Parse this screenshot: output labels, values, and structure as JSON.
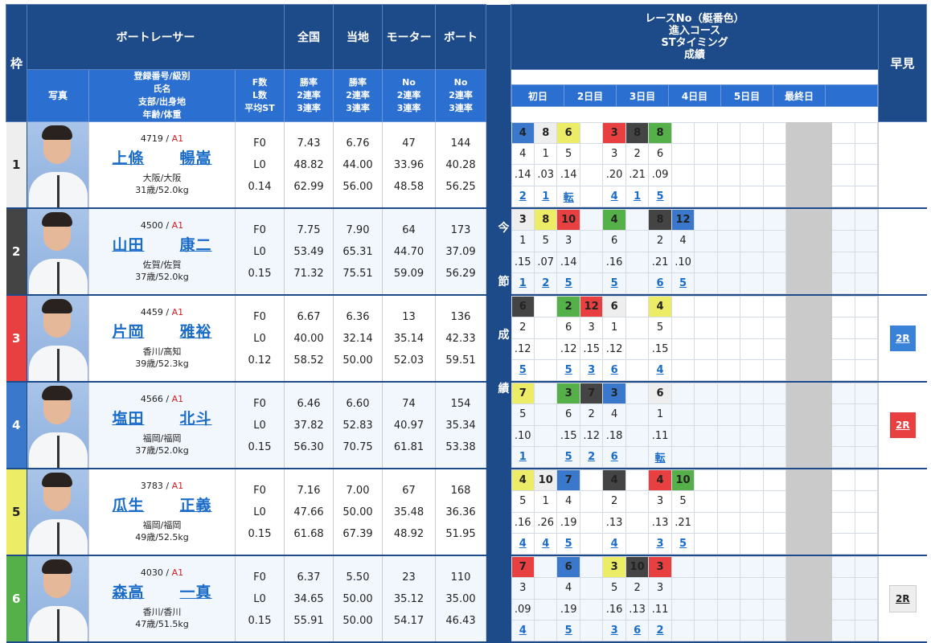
{
  "header": {
    "waku": "枠",
    "boatracer": "ボートレーサー",
    "zenkoku": "全国",
    "touchi": "当地",
    "motor": "モーター",
    "boat": "ボート",
    "photo": "写真",
    "info_lines": [
      "登録番号/級別",
      "氏名",
      "支部/出身地",
      "年齢/体重"
    ],
    "fl_lines": [
      "F数",
      "L数",
      "平均ST"
    ],
    "zenkoku_lines": [
      "勝率",
      "2連率",
      "3連率"
    ],
    "touchi_lines": [
      "勝率",
      "2連率",
      "3連率"
    ],
    "motor_lines": [
      "No",
      "2連率",
      "3連率"
    ],
    "boat_lines": [
      "No",
      "2連率",
      "3連率"
    ],
    "race_title_lines": [
      "レースNo（艇番色）",
      "進入コース",
      "STタイミング",
      "成績"
    ],
    "days": [
      "初日",
      "2日目",
      "3日目",
      "4日目",
      "5日目",
      "最終日",
      ""
    ],
    "hayami": "早見",
    "strip_chars": [
      "今",
      "節",
      "成",
      "績"
    ]
  },
  "racers": [
    {
      "waku": "1",
      "reg_no": "4719",
      "class": "A1",
      "name_last": "上條",
      "name_first": "暢嵩",
      "branch": "大阪/大阪",
      "age_weight": "31歳/52.0kg",
      "f": "F0",
      "l": "L0",
      "avg_st": "0.14",
      "zenkoku": [
        "7.43",
        "48.82",
        "62.99"
      ],
      "touchi": [
        "6.76",
        "44.00",
        "56.00"
      ],
      "motor": [
        "47",
        "33.96",
        "48.58"
      ],
      "boat": [
        "144",
        "40.28",
        "56.25"
      ],
      "races": [
        {
          "race": "4",
          "color": "4",
          "course": "4",
          "st": ".14",
          "result": "2"
        },
        {
          "race": "8",
          "color": "1",
          "course": "1",
          "st": ".03",
          "result": "1"
        },
        {
          "race": "6",
          "color": "5",
          "course": "5",
          "st": ".14",
          "result": "転"
        },
        null,
        {
          "race": "3",
          "color": "3",
          "course": "3",
          "st": ".20",
          "result": "4"
        },
        {
          "race": "8",
          "color": "2",
          "course": "2",
          "st": ".21",
          "result": "1"
        },
        {
          "race": "8",
          "color": "6",
          "course": "6",
          "st": ".09",
          "result": "5"
        },
        null,
        null,
        null,
        null,
        null,
        null,
        null,
        null,
        null
      ],
      "hayami": null
    },
    {
      "waku": "2",
      "reg_no": "4500",
      "class": "A1",
      "name_last": "山田",
      "name_first": "康二",
      "branch": "佐賀/佐賀",
      "age_weight": "37歳/52.0kg",
      "f": "F0",
      "l": "L0",
      "avg_st": "0.15",
      "zenkoku": [
        "7.75",
        "53.49",
        "71.32"
      ],
      "touchi": [
        "7.90",
        "65.31",
        "75.51"
      ],
      "motor": [
        "64",
        "44.70",
        "59.09"
      ],
      "boat": [
        "173",
        "37.09",
        "56.29"
      ],
      "races": [
        {
          "race": "3",
          "color": "1",
          "course": "1",
          "st": ".15",
          "result": "1"
        },
        {
          "race": "8",
          "color": "5",
          "course": "5",
          "st": ".07",
          "result": "2"
        },
        {
          "race": "10",
          "color": "3",
          "course": "3",
          "st": ".14",
          "result": "5"
        },
        null,
        {
          "race": "4",
          "color": "6",
          "course": "6",
          "st": ".16",
          "result": "5"
        },
        null,
        {
          "race": "8",
          "color": "2",
          "course": "2",
          "st": ".21",
          "result": "6"
        },
        {
          "race": "12",
          "color": "4",
          "course": "4",
          "st": ".10",
          "result": "5"
        },
        null,
        null,
        null,
        null,
        null,
        null,
        null,
        null
      ],
      "hayami": null
    },
    {
      "waku": "3",
      "reg_no": "4459",
      "class": "A1",
      "name_last": "片岡",
      "name_first": "雅裕",
      "branch": "香川/高知",
      "age_weight": "39歳/52.3kg",
      "f": "F0",
      "l": "L0",
      "avg_st": "0.12",
      "zenkoku": [
        "6.67",
        "40.00",
        "58.52"
      ],
      "touchi": [
        "6.36",
        "32.14",
        "50.00"
      ],
      "motor": [
        "13",
        "35.14",
        "52.03"
      ],
      "boat": [
        "136",
        "42.33",
        "59.51"
      ],
      "races": [
        {
          "race": "6",
          "color": "2",
          "course": "2",
          "st": ".12",
          "result": "5"
        },
        null,
        {
          "race": "2",
          "color": "6",
          "course": "6",
          "st": ".12",
          "result": "5"
        },
        {
          "race": "12",
          "color": "3",
          "course": "3",
          "st": ".15",
          "result": "3"
        },
        {
          "race": "6",
          "color": "1",
          "course": "1",
          "st": ".12",
          "result": "6"
        },
        null,
        {
          "race": "4",
          "color": "5",
          "course": "5",
          "st": ".15",
          "result": "4"
        },
        null,
        null,
        null,
        null,
        null,
        null,
        null,
        null,
        null
      ],
      "hayami": {
        "label": "2R",
        "style": "blue"
      }
    },
    {
      "waku": "4",
      "reg_no": "4566",
      "class": "A1",
      "name_last": "塩田",
      "name_first": "北斗",
      "branch": "福岡/福岡",
      "age_weight": "37歳/52.0kg",
      "f": "F0",
      "l": "L0",
      "avg_st": "0.15",
      "zenkoku": [
        "6.46",
        "37.82",
        "56.30"
      ],
      "touchi": [
        "6.60",
        "52.83",
        "70.75"
      ],
      "motor": [
        "74",
        "40.97",
        "61.81"
      ],
      "boat": [
        "154",
        "35.34",
        "53.38"
      ],
      "races": [
        {
          "race": "7",
          "color": "5",
          "course": "5",
          "st": ".10",
          "result": "1"
        },
        null,
        {
          "race": "3",
          "color": "6",
          "course": "6",
          "st": ".15",
          "result": "5"
        },
        {
          "race": "7",
          "color": "2",
          "course": "2",
          "st": ".12",
          "result": "2"
        },
        {
          "race": "3",
          "color": "4",
          "course": "4",
          "st": ".18",
          "result": "6"
        },
        null,
        {
          "race": "6",
          "color": "1",
          "course": "1",
          "st": ".11",
          "result": "転"
        },
        null,
        null,
        null,
        null,
        null,
        null,
        null,
        null,
        null
      ],
      "hayami": {
        "label": "2R",
        "style": "red"
      }
    },
    {
      "waku": "5",
      "reg_no": "3783",
      "class": "A1",
      "name_last": "瓜生",
      "name_first": "正義",
      "branch": "福岡/福岡",
      "age_weight": "49歳/52.5kg",
      "f": "F0",
      "l": "L0",
      "avg_st": "0.15",
      "zenkoku": [
        "7.16",
        "47.66",
        "61.68"
      ],
      "touchi": [
        "7.00",
        "50.00",
        "67.39"
      ],
      "motor": [
        "67",
        "35.48",
        "48.92"
      ],
      "boat": [
        "168",
        "36.36",
        "51.95"
      ],
      "races": [
        {
          "race": "4",
          "color": "5",
          "course": "5",
          "st": ".16",
          "result": "4"
        },
        {
          "race": "10",
          "color": "1",
          "course": "1",
          "st": ".26",
          "result": "4"
        },
        {
          "race": "7",
          "color": "4",
          "course": "4",
          "st": ".19",
          "result": "5"
        },
        null,
        {
          "race": "4",
          "color": "2",
          "course": "2",
          "st": ".13",
          "result": "4"
        },
        null,
        {
          "race": "4",
          "color": "3",
          "course": "3",
          "st": ".13",
          "result": "3"
        },
        {
          "race": "10",
          "color": "6",
          "course": "5",
          "st": ".21",
          "result": "5"
        },
        null,
        null,
        null,
        null,
        null,
        null,
        null,
        null
      ],
      "hayami": null
    },
    {
      "waku": "6",
      "reg_no": "4030",
      "class": "A1",
      "name_last": "森高",
      "name_first": "一真",
      "branch": "香川/香川",
      "age_weight": "47歳/51.5kg",
      "f": "F0",
      "l": "L0",
      "avg_st": "0.15",
      "zenkoku": [
        "6.37",
        "34.65",
        "55.91"
      ],
      "touchi": [
        "5.50",
        "50.00",
        "50.00"
      ],
      "motor": [
        "23",
        "35.12",
        "54.17"
      ],
      "boat": [
        "110",
        "35.00",
        "46.43"
      ],
      "races": [
        {
          "race": "7",
          "color": "3",
          "course": "3",
          "st": ".09",
          "result": "4"
        },
        null,
        {
          "race": "6",
          "color": "4",
          "course": "4",
          "st": ".19",
          "result": "5"
        },
        null,
        {
          "race": "3",
          "color": "5",
          "course": "5",
          "st": ".16",
          "result": "3"
        },
        {
          "race": "10",
          "color": "2",
          "course": "2",
          "st": ".13",
          "result": "6"
        },
        {
          "race": "3",
          "color": "3",
          "course": "3",
          "st": ".11",
          "result": "2"
        },
        null,
        null,
        null,
        null,
        null,
        null,
        null,
        null,
        null
      ],
      "hayami": {
        "label": "2R",
        "style": "gray"
      }
    }
  ],
  "colors": {
    "header_dark": "#1d4a88",
    "header_mid": "#2b6fd0",
    "link": "#1a6cc8",
    "class_red": "#d02020",
    "boat_1": "#eeeeee",
    "boat_2": "#444444",
    "boat_3": "#e84040",
    "boat_4": "#3a78cc",
    "boat_5": "#ecec66",
    "boat_6": "#55b04a"
  }
}
